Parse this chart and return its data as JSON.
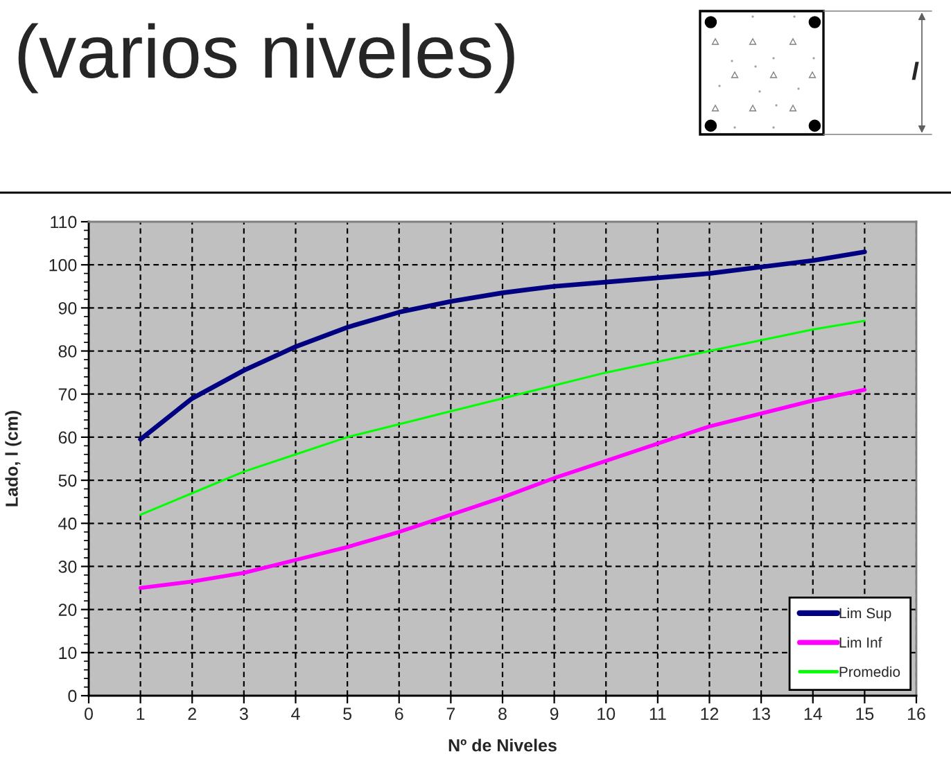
{
  "chart_data": {
    "type": "line",
    "title": "(varios niveles)",
    "xlabel": "Nº de Niveles",
    "ylabel": "Lado, l (cm)",
    "annotations": [
      "l"
    ],
    "x": [
      1,
      2,
      3,
      4,
      5,
      6,
      7,
      8,
      9,
      10,
      11,
      12,
      13,
      14,
      15
    ],
    "series": [
      {
        "name": "Lim Sup",
        "color": "#000080",
        "values": [
          59.5,
          69,
          75.5,
          81,
          85.5,
          89,
          91.5,
          93.5,
          95,
          96,
          97,
          98,
          99.5,
          101,
          103
        ]
      },
      {
        "name": "Lim Inf",
        "color": "#ff00ff",
        "values": [
          25,
          26.5,
          28.5,
          31.5,
          34.5,
          38,
          42,
          46,
          50.5,
          54.5,
          58.5,
          62.5,
          65.5,
          68.5,
          71
        ]
      },
      {
        "name": "Promedio",
        "color": "#00ff00",
        "values": [
          42,
          47,
          52,
          56,
          60,
          63,
          66,
          69,
          72,
          75,
          77.5,
          80,
          82.5,
          85,
          87
        ]
      }
    ],
    "xlim": [
      0,
      16
    ],
    "ylim": [
      0,
      110
    ],
    "xticks": [
      0,
      1,
      2,
      3,
      4,
      5,
      6,
      7,
      8,
      9,
      10,
      11,
      12,
      13,
      14,
      15,
      16
    ],
    "yticks": [
      0,
      10,
      20,
      30,
      40,
      50,
      60,
      70,
      80,
      90,
      100,
      110
    ],
    "grid": true,
    "legend": "bottom right",
    "line_style": "solid"
  }
}
